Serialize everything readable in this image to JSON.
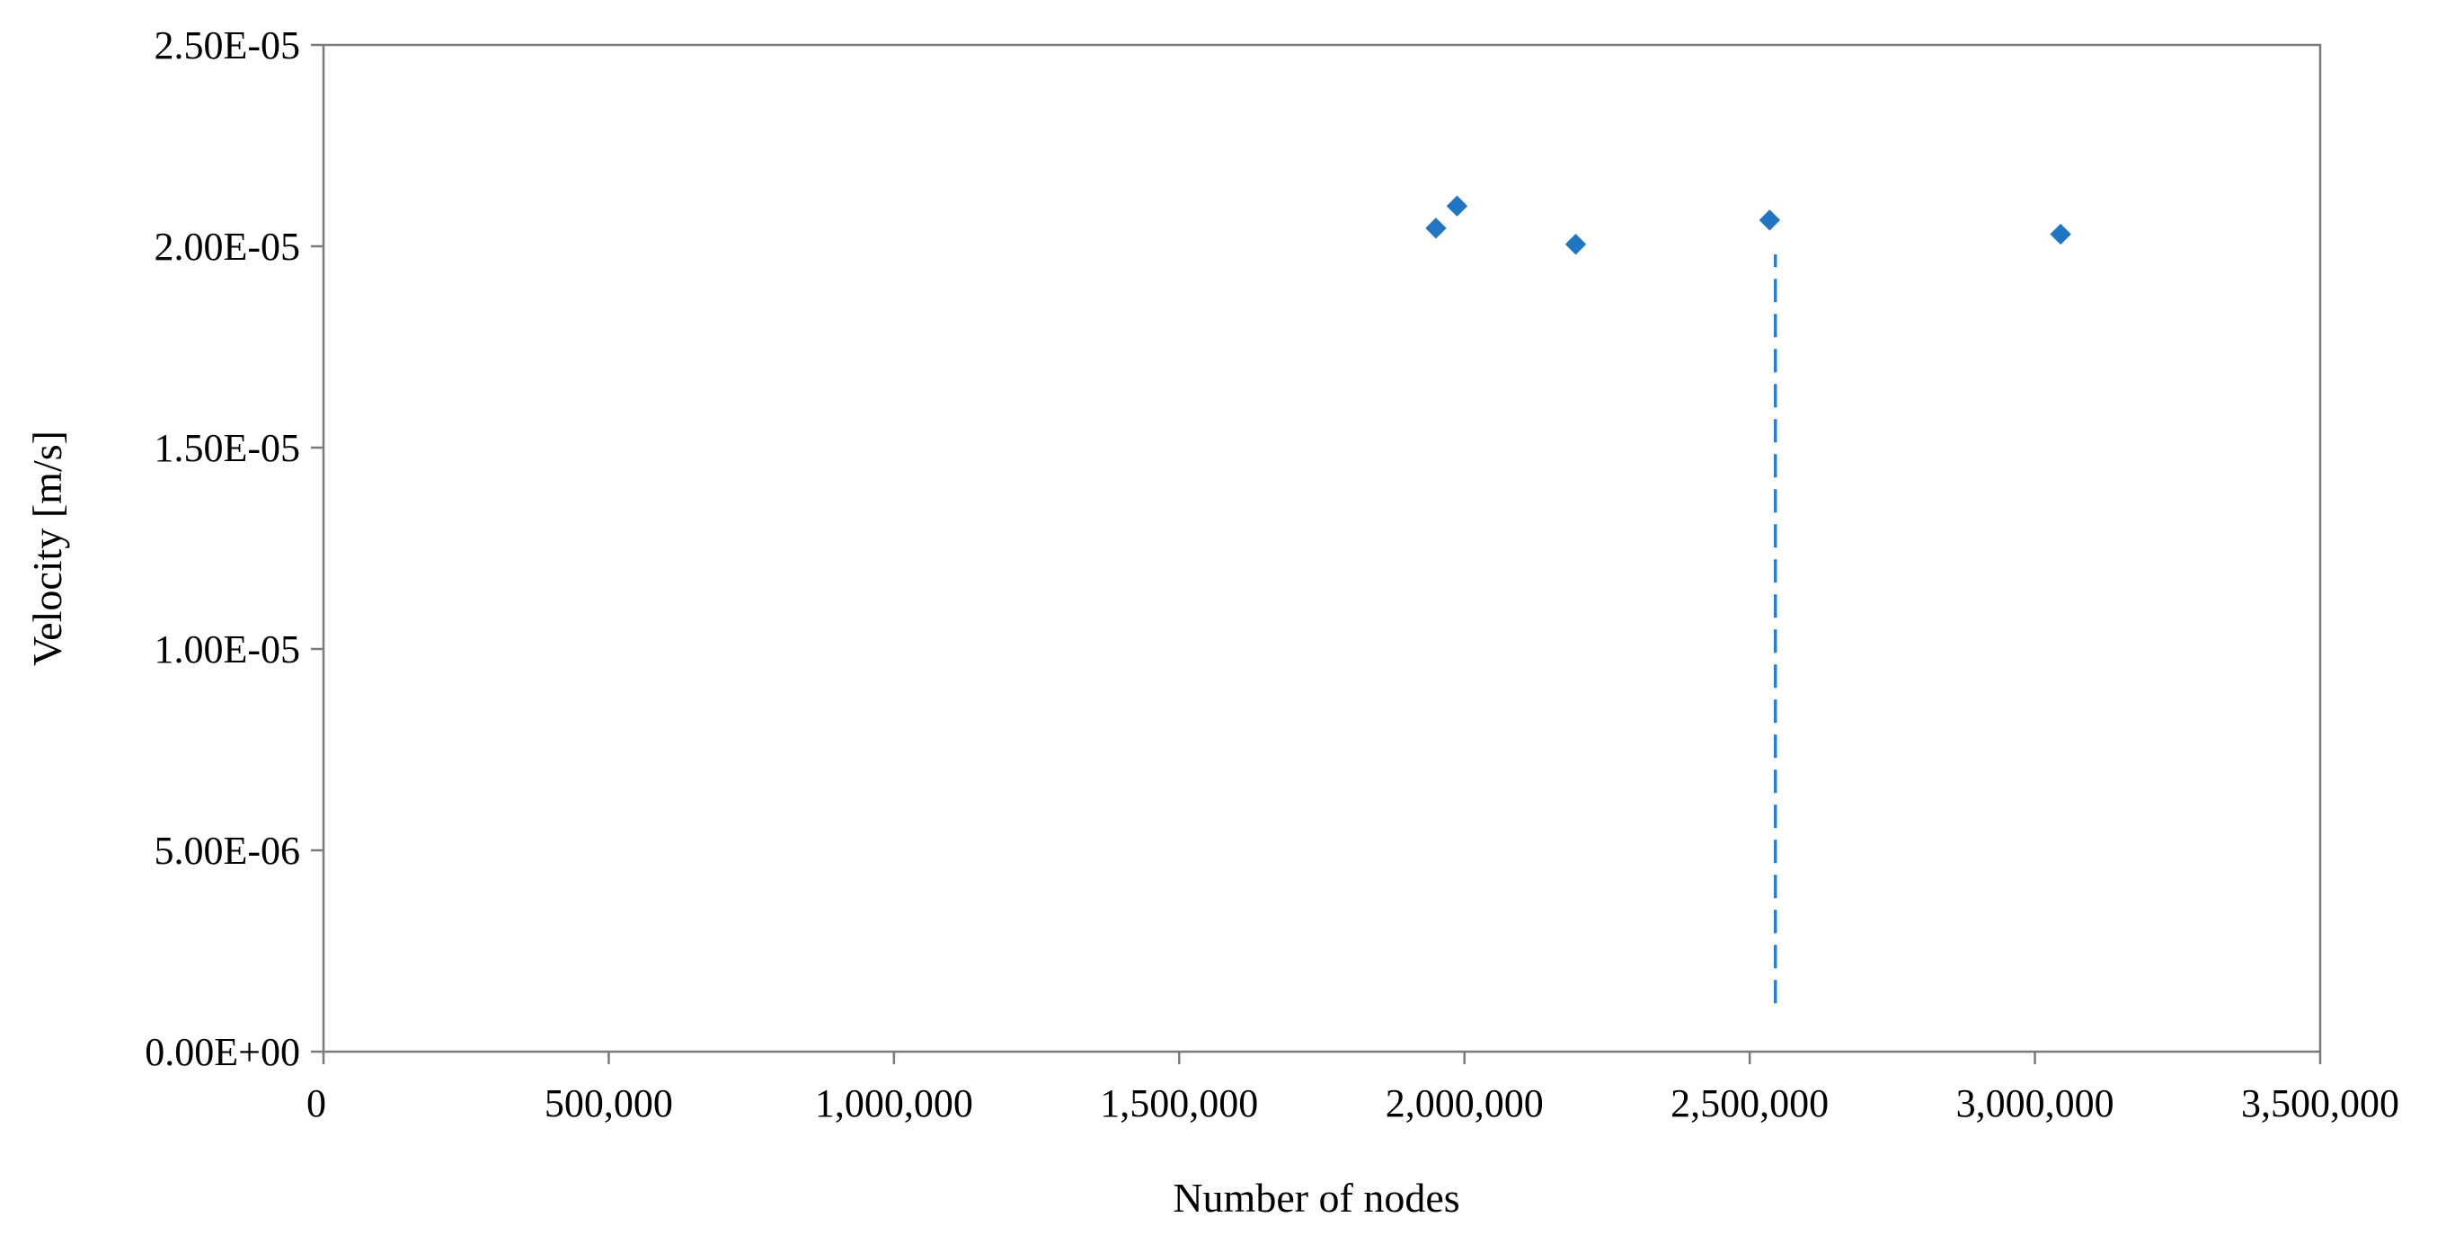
{
  "chart_data": {
    "type": "scatter",
    "xlabel": "Number of nodes",
    "ylabel": "Velocity [m/s]",
    "xlim": [
      0,
      3500000
    ],
    "ylim": [
      0,
      2.5e-05
    ],
    "x_ticks": [
      {
        "value": 0,
        "label": "0"
      },
      {
        "value": 500000,
        "label": "500,000"
      },
      {
        "value": 1000000,
        "label": "1,000,000"
      },
      {
        "value": 1500000,
        "label": "1,500,000"
      },
      {
        "value": 2000000,
        "label": "2,000,000"
      },
      {
        "value": 2500000,
        "label": "2,500,000"
      },
      {
        "value": 3000000,
        "label": "3,000,000"
      },
      {
        "value": 3500000,
        "label": "3,500,000"
      }
    ],
    "y_ticks": [
      {
        "value": 0,
        "label": "0.00E+00"
      },
      {
        "value": 5e-06,
        "label": "5.00E-06"
      },
      {
        "value": 1e-05,
        "label": "1.00E-05"
      },
      {
        "value": 1.5e-05,
        "label": "1.50E-05"
      },
      {
        "value": 2e-05,
        "label": "2.00E-05"
      },
      {
        "value": 2.5e-05,
        "label": "2.50E-05"
      }
    ],
    "grid": false,
    "legend": "none",
    "marker": "diamond",
    "color": "#1f77c4",
    "series": [
      {
        "x": [
          1950000,
          1987000,
          2195000,
          2535000,
          3045000
        ],
        "y": [
          2.045e-05,
          2.1e-05,
          2.005e-05,
          2.065e-05,
          2.03e-05
        ]
      }
    ],
    "reference_line": {
      "x": 2545000,
      "y_from": 1.2e-06,
      "y_to": 1.98e-05,
      "style": "dashed",
      "color": "#2a7fd0"
    }
  }
}
